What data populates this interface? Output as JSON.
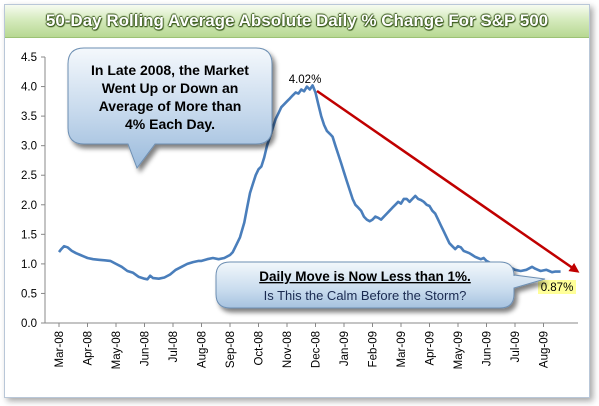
{
  "title": "50-Day Rolling Average Absolute Daily % Change For S&P 500",
  "chart_data": {
    "type": "line",
    "title": "50-Day Rolling Average Absolute Daily % Change For S&P 500",
    "ylim": [
      0,
      4.5
    ],
    "y_ticks": [
      "0.0",
      "0.5",
      "1.0",
      "1.5",
      "2.0",
      "2.5",
      "3.0",
      "3.5",
      "4.0",
      "4.5"
    ],
    "x_ticks": [
      "Mar-08",
      "Apr-08",
      "May-08",
      "Jun-08",
      "Jul-08",
      "Aug-08",
      "Sep-08",
      "Oct-08",
      "Nov-08",
      "Dec-08",
      "Jan-09",
      "Feb-09",
      "Mar-09",
      "Apr-09",
      "May-09",
      "Jun-09",
      "Jul-09",
      "Aug-09"
    ],
    "grid": false,
    "series_color": "#4a7ebb",
    "arrow_color": "#c00000",
    "series": [
      {
        "x": [
          0,
          0.08,
          0.18,
          0.3,
          0.45,
          0.6,
          0.75,
          0.9,
          1.0,
          1.2,
          1.4,
          1.6,
          1.8,
          2.0,
          2.2,
          2.4,
          2.6,
          2.8,
          3.0,
          3.1,
          3.2,
          3.3,
          3.5,
          3.7,
          3.9,
          4.1,
          4.3,
          4.5,
          4.7,
          4.9,
          5.0,
          5.2,
          5.4,
          5.6,
          5.8,
          6.0,
          6.1,
          6.2,
          6.35,
          6.5,
          6.6,
          6.7,
          6.8,
          6.9,
          7.0,
          7.1,
          7.2,
          7.3,
          7.4,
          7.5,
          7.6,
          7.7,
          7.8,
          7.9,
          8.0,
          8.1,
          8.2,
          8.3,
          8.4,
          8.5,
          8.6,
          8.7,
          8.8,
          8.9,
          9.0,
          9.1,
          9.2,
          9.3,
          9.4,
          9.5,
          9.6,
          9.7,
          9.8,
          9.9,
          10.0,
          10.1,
          10.2,
          10.3,
          10.4,
          10.5,
          10.6,
          10.7,
          10.8,
          10.9,
          11.0,
          11.1,
          11.2,
          11.3,
          11.4,
          11.5,
          11.6,
          11.7,
          11.8,
          11.9,
          12.0,
          12.1,
          12.2,
          12.3,
          12.4,
          12.5,
          12.6,
          12.7,
          12.8,
          12.9,
          13.0,
          13.1,
          13.2,
          13.3,
          13.4,
          13.5,
          13.6,
          13.7,
          13.8,
          13.9,
          14.0,
          14.1,
          14.2,
          14.3,
          14.4,
          14.5,
          14.6,
          14.7,
          14.8,
          14.9,
          15.0,
          15.2,
          15.4,
          15.6,
          15.8,
          16.0,
          16.2,
          16.4,
          16.6,
          16.7,
          16.8,
          16.9,
          17.0,
          17.1,
          17.2,
          17.3,
          17.4,
          17.5,
          17.6
        ],
        "y": [
          1.2,
          1.25,
          1.3,
          1.28,
          1.22,
          1.18,
          1.15,
          1.12,
          1.1,
          1.08,
          1.07,
          1.06,
          1.05,
          1.0,
          0.95,
          0.88,
          0.85,
          0.78,
          0.75,
          0.74,
          0.8,
          0.76,
          0.75,
          0.77,
          0.82,
          0.9,
          0.95,
          1.0,
          1.03,
          1.05,
          1.05,
          1.08,
          1.1,
          1.08,
          1.1,
          1.15,
          1.2,
          1.3,
          1.45,
          1.7,
          1.95,
          2.2,
          2.35,
          2.5,
          2.6,
          2.65,
          2.8,
          3.0,
          3.15,
          3.3,
          3.45,
          3.55,
          3.65,
          3.7,
          3.75,
          3.8,
          3.85,
          3.9,
          3.88,
          3.95,
          3.92,
          4.0,
          3.95,
          4.02,
          3.9,
          3.7,
          3.5,
          3.35,
          3.25,
          3.2,
          3.15,
          3.0,
          2.85,
          2.7,
          2.55,
          2.4,
          2.25,
          2.1,
          2.0,
          1.95,
          1.9,
          1.8,
          1.75,
          1.72,
          1.75,
          1.8,
          1.78,
          1.75,
          1.8,
          1.85,
          1.9,
          1.95,
          2.0,
          2.05,
          2.02,
          2.1,
          2.1,
          2.05,
          2.1,
          2.15,
          2.1,
          2.08,
          2.05,
          2.0,
          1.98,
          1.9,
          1.85,
          1.75,
          1.65,
          1.55,
          1.45,
          1.35,
          1.3,
          1.25,
          1.3,
          1.28,
          1.22,
          1.2,
          1.18,
          1.15,
          1.12,
          1.1,
          1.08,
          1.1,
          1.05,
          1.0,
          0.98,
          0.96,
          0.95,
          0.9,
          0.88,
          0.9,
          0.95,
          0.92,
          0.9,
          0.88,
          0.89,
          0.9,
          0.88,
          0.86,
          0.87,
          0.87,
          0.87
        ]
      }
    ],
    "annotations": {
      "peak_label": "4.02%",
      "end_label": "0.87%",
      "callout_1": [
        "In Late 2008, the Market",
        "Went Up or Down an",
        "Average of More than",
        "4% Each Day."
      ],
      "callout_2_line1": "Daily Move is Now Less than 1%.",
      "callout_2_line2": "Is This the Calm Before the Storm?"
    }
  }
}
